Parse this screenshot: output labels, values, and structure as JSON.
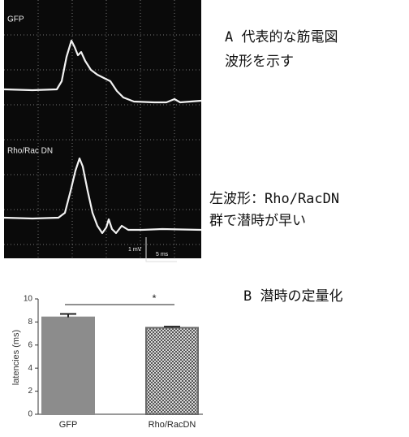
{
  "panel_a": {
    "trace_labels": [
      "GFP",
      "Rho/Rac DN"
    ],
    "scale_labels": [
      "1 mV",
      "5 ms"
    ]
  },
  "notes": [
    "A 代表的な筋電図",
    "波形を示す",
    "左波形：Rho/RacDN",
    "群で潜時が早い",
    "B 潜時の定量化"
  ],
  "chart_data": {
    "type": "bar",
    "y_label": "latencies (ms)",
    "categories": [
      "GFP",
      "Rho/RacDN"
    ],
    "values": [
      8.4,
      7.5
    ],
    "errors": [
      0.3,
      0.1
    ],
    "colors": [
      "#8c8c8c",
      "#6a6a6a"
    ],
    "ylim": [
      0,
      10
    ],
    "yticks": [
      0,
      2,
      4,
      6,
      8,
      10
    ],
    "annotation": "*"
  }
}
